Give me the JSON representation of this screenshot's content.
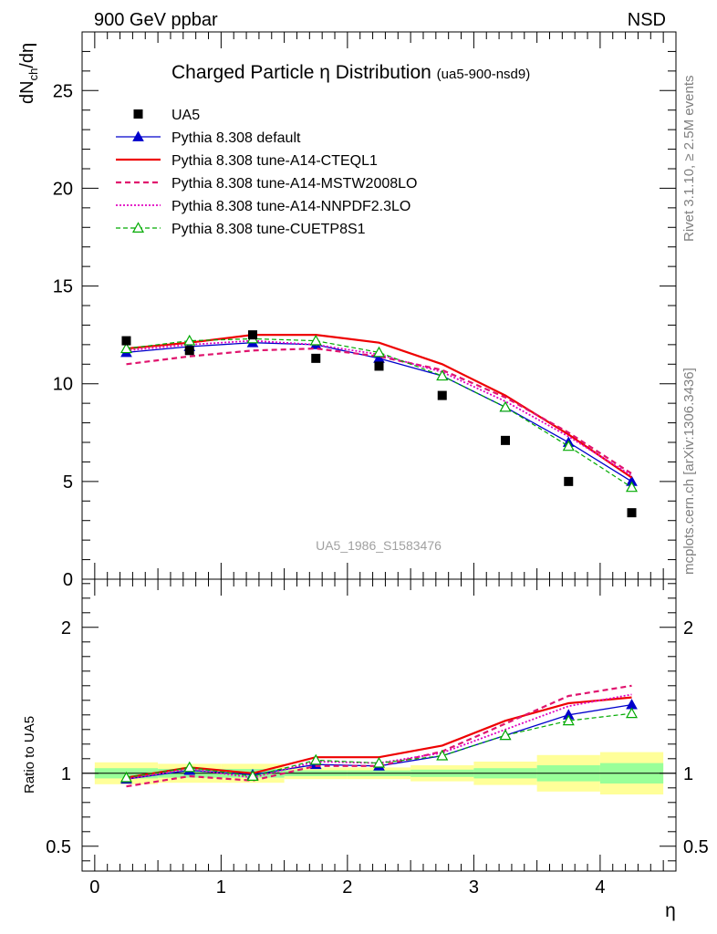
{
  "header": {
    "left": "900 GeV ppbar",
    "right": "NSD"
  },
  "side_labels": {
    "top": "Rivet 3.1.10, ≥ 2.5M events",
    "bottom": "mcplots.cern.ch [arXiv:1306.3436]"
  },
  "watermark": "UA5_1986_S1583476",
  "chart_data": [
    {
      "type": "line",
      "title": "Charged Particle η Distribution",
      "title_sub": "(ua5-900-nsd9)",
      "ylabel_main": "dN",
      "ylabel_sub": "ch",
      "ylabel_tail": "/dη",
      "xlim": [
        -0.1,
        4.6
      ],
      "ylim": [
        0,
        28
      ],
      "yticks": [
        {
          "v": 0,
          "label": "0"
        },
        {
          "v": 5,
          "label": "5"
        },
        {
          "v": 10,
          "label": "10"
        },
        {
          "v": 15,
          "label": "15"
        },
        {
          "v": 20,
          "label": "20"
        },
        {
          "v": 25,
          "label": "25"
        }
      ],
      "x": [
        0.25,
        0.75,
        1.25,
        1.75,
        2.25,
        2.75,
        3.25,
        3.75,
        4.25
      ],
      "data": {
        "name": "UA5",
        "values": [
          12.2,
          11.7,
          12.5,
          11.3,
          10.9,
          9.4,
          7.1,
          5.0,
          3.4
        ]
      },
      "series": [
        {
          "name": "Pythia 8.308 default",
          "color": "#0000cc",
          "dash": "",
          "width": 1.3,
          "marker": "triangle-filled",
          "values": [
            11.6,
            11.9,
            12.1,
            12.0,
            11.3,
            10.4,
            8.8,
            7.0,
            5.0
          ]
        },
        {
          "name": "Pythia 8.308 tune-A14-CTEQL1",
          "color": "#ee0000",
          "dash": "",
          "width": 2.2,
          "marker": "none",
          "values": [
            11.8,
            12.1,
            12.5,
            12.5,
            12.1,
            11.0,
            9.4,
            7.4,
            5.2
          ]
        },
        {
          "name": "Pythia 8.308 tune-A14-MSTW2008LO",
          "color": "#e0146e",
          "dash": "6,4",
          "width": 2.2,
          "marker": "none",
          "values": [
            11.0,
            11.4,
            11.7,
            11.8,
            11.4,
            10.7,
            9.3,
            7.5,
            5.4
          ]
        },
        {
          "name": "Pythia 8.308 tune-A14-NNPDF2.3LO",
          "color": "#e000c0",
          "dash": "2,2",
          "width": 1.8,
          "marker": "none",
          "values": [
            11.7,
            12.0,
            12.2,
            12.0,
            11.5,
            10.6,
            9.1,
            7.3,
            5.3
          ]
        },
        {
          "name": "Pythia 8.308 tune-CUETP8S1",
          "color": "#00aa00",
          "dash": "5,3",
          "width": 1.2,
          "marker": "triangle-open",
          "values": [
            11.8,
            12.2,
            12.3,
            12.2,
            11.6,
            10.4,
            8.8,
            6.8,
            4.7
          ]
        }
      ]
    },
    {
      "type": "line",
      "ylabel": "Ratio to UA5",
      "xlabel": "η",
      "xlim": [
        -0.1,
        4.6
      ],
      "ylim": [
        0.33,
        2.33
      ],
      "yticks": [
        {
          "v": 0.5,
          "label": "0.5"
        },
        {
          "v": 1,
          "label": "1"
        },
        {
          "v": 2,
          "label": "2"
        }
      ],
      "xticks": [
        {
          "v": 0,
          "label": "0"
        },
        {
          "v": 1,
          "label": "1"
        },
        {
          "v": 2,
          "label": "2"
        },
        {
          "v": 3,
          "label": "3"
        },
        {
          "v": 4,
          "label": "4"
        }
      ],
      "bands": [
        {
          "x0": 0.0,
          "x1": 0.5,
          "inner": 0.035,
          "outer": 0.075
        },
        {
          "x0": 0.5,
          "x1": 1.0,
          "inner": 0.03,
          "outer": 0.065
        },
        {
          "x0": 1.0,
          "x1": 1.5,
          "inner": 0.03,
          "outer": 0.065
        },
        {
          "x0": 1.5,
          "x1": 2.0,
          "inner": 0.02,
          "outer": 0.04
        },
        {
          "x0": 2.0,
          "x1": 2.5,
          "inner": 0.02,
          "outer": 0.04
        },
        {
          "x0": 2.5,
          "x1": 3.0,
          "inner": 0.025,
          "outer": 0.055
        },
        {
          "x0": 3.0,
          "x1": 3.5,
          "inner": 0.035,
          "outer": 0.08
        },
        {
          "x0": 3.5,
          "x1": 4.0,
          "inner": 0.055,
          "outer": 0.125
        },
        {
          "x0": 4.0,
          "x1": 4.5,
          "inner": 0.07,
          "outer": 0.145
        }
      ],
      "series": [
        {
          "name": "Pythia 8.308 default",
          "color": "#0000cc",
          "dash": "",
          "width": 1.3,
          "marker": "triangle-filled",
          "values": [
            0.96,
            1.02,
            0.99,
            1.06,
            1.05,
            1.12,
            1.26,
            1.4,
            1.47
          ]
        },
        {
          "name": "Pythia 8.308 tune-A14-CTEQL1",
          "color": "#ee0000",
          "dash": "",
          "width": 2.2,
          "marker": "none",
          "values": [
            0.97,
            1.04,
            1.0,
            1.11,
            1.11,
            1.19,
            1.36,
            1.48,
            1.52
          ]
        },
        {
          "name": "Pythia 8.308 tune-A14-MSTW2008LO",
          "color": "#e0146e",
          "dash": "6,4",
          "width": 2.2,
          "marker": "none",
          "values": [
            0.91,
            0.98,
            0.95,
            1.05,
            1.05,
            1.15,
            1.34,
            1.53,
            1.6
          ]
        },
        {
          "name": "Pythia 8.308 tune-A14-NNPDF2.3LO",
          "color": "#e000c0",
          "dash": "2,2",
          "width": 1.8,
          "marker": "none",
          "values": [
            0.96,
            1.03,
            0.97,
            1.08,
            1.07,
            1.14,
            1.3,
            1.46,
            1.54
          ]
        },
        {
          "name": "Pythia 8.308 tune-CUETP8S1",
          "color": "#00aa00",
          "dash": "5,3",
          "width": 1.2,
          "marker": "triangle-open",
          "values": [
            0.97,
            1.04,
            0.98,
            1.09,
            1.07,
            1.12,
            1.26,
            1.36,
            1.41
          ]
        }
      ]
    }
  ]
}
